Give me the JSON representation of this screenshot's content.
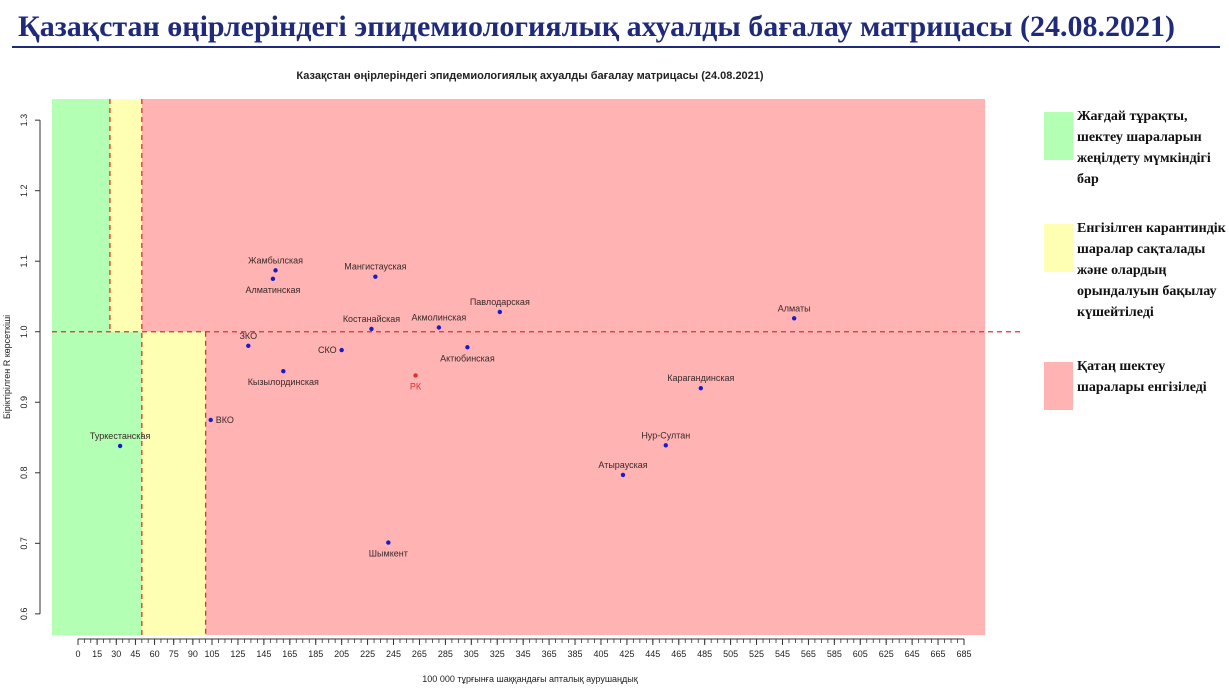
{
  "slide": {
    "title": "Қазақстан өңірлеріндегі эпидемиологиялық ахуалды бағалау матрицасы  (24.08.2021)"
  },
  "legend": [
    {
      "text": "Жағдай тұрақты, шектеу шараларын жеңілдету мүмкіндігі бар",
      "color": "#b3ffb3"
    },
    {
      "text": "Енгізілген карантиндік шаралар сақталады және олардың орындалуын бақылау күшейтіледі",
      "color": "#ffffb3"
    },
    {
      "text": "Қатаң шектеу шаралары енгізіледі",
      "color": "#ffb3b3"
    }
  ],
  "chart_data": {
    "type": "scatter",
    "title": "Казақстан өңірлеріндегі эпидемиологиялық ахуалды бағалау матрицасы  (24.08.2021)",
    "xlabel": "100 000 тұрғынға шаққандағы апталық аурушаңдық",
    "ylabel": "Біріктірілген R көрсеткіші",
    "xlim": [
      -20,
      700
    ],
    "ylim": [
      0.57,
      1.33
    ],
    "xticks": [
      0,
      15,
      30,
      45,
      60,
      75,
      90,
      105,
      125,
      145,
      165,
      185,
      205,
      225,
      245,
      265,
      285,
      305,
      325,
      345,
      365,
      385,
      405,
      425,
      445,
      465,
      485,
      505,
      525,
      545,
      565,
      585,
      605,
      625,
      645,
      665,
      685
    ],
    "yticks": [
      "0.6",
      "0.7",
      "0.8",
      "0.9",
      "1.0",
      "1.1",
      "1.2",
      "1.3"
    ],
    "zones": [
      {
        "x0": -20,
        "x1": 25,
        "y0": 1.0,
        "y1": 1.33,
        "color": "#b3ffb3"
      },
      {
        "x0": 25,
        "x1": 50,
        "y0": 1.0,
        "y1": 1.33,
        "color": "#ffffb3"
      },
      {
        "x0": 50,
        "x1": 700,
        "y0": 1.0,
        "y1": 1.33,
        "color": "#ffb3b3"
      },
      {
        "x0": -20,
        "x1": 50,
        "y0": 0.57,
        "y1": 1.0,
        "color": "#b3ffb3"
      },
      {
        "x0": 50,
        "x1": 100,
        "y0": 0.57,
        "y1": 1.0,
        "color": "#ffffb3"
      },
      {
        "x0": 100,
        "x1": 700,
        "y0": 0.57,
        "y1": 1.0,
        "color": "#ffb3b3"
      }
    ],
    "threshold_lines": {
      "vertical": [
        25,
        50,
        100
      ],
      "horizontal": 1.0,
      "color": "#e0312e"
    },
    "grid": false,
    "point_color": "#1a1acc",
    "highlight_color": "#e0312e",
    "points": [
      {
        "name": "Жамбылская",
        "x": 154,
        "y": 1.087,
        "label_pos": "above"
      },
      {
        "name": "Алматинская",
        "x": 152,
        "y": 1.075,
        "label_pos": "below"
      },
      {
        "name": "Мангистауская",
        "x": 231,
        "y": 1.078,
        "label_pos": "above"
      },
      {
        "name": "Павлодарская",
        "x": 327,
        "y": 1.028,
        "label_pos": "above"
      },
      {
        "name": "Алматы",
        "x": 554,
        "y": 1.019,
        "label_pos": "above"
      },
      {
        "name": "Костанайская",
        "x": 228,
        "y": 1.004,
        "label_pos": "above"
      },
      {
        "name": "Акмолинская",
        "x": 280,
        "y": 1.006,
        "label_pos": "above"
      },
      {
        "name": "ЗКО",
        "x": 133,
        "y": 0.98,
        "label_pos": "above"
      },
      {
        "name": "СКО",
        "x": 205,
        "y": 0.974,
        "label_pos": "left"
      },
      {
        "name": "Актюбинская",
        "x": 302,
        "y": 0.978,
        "label_pos": "below"
      },
      {
        "name": "Кызылординская",
        "x": 160,
        "y": 0.944,
        "label_pos": "below"
      },
      {
        "name": "РК",
        "x": 262,
        "y": 0.938,
        "label_pos": "below",
        "highlight": true
      },
      {
        "name": "Карагандинская",
        "x": 482,
        "y": 0.92,
        "label_pos": "above"
      },
      {
        "name": "ВКО",
        "x": 104,
        "y": 0.875,
        "label_pos": "right"
      },
      {
        "name": "Туркестанская",
        "x": 33,
        "y": 0.838,
        "label_pos": "above"
      },
      {
        "name": "Нур-Султан",
        "x": 455,
        "y": 0.839,
        "label_pos": "above"
      },
      {
        "name": "Атырауская",
        "x": 422,
        "y": 0.797,
        "label_pos": "above"
      },
      {
        "name": "Шымкент",
        "x": 241,
        "y": 0.701,
        "label_pos": "below"
      }
    ]
  }
}
